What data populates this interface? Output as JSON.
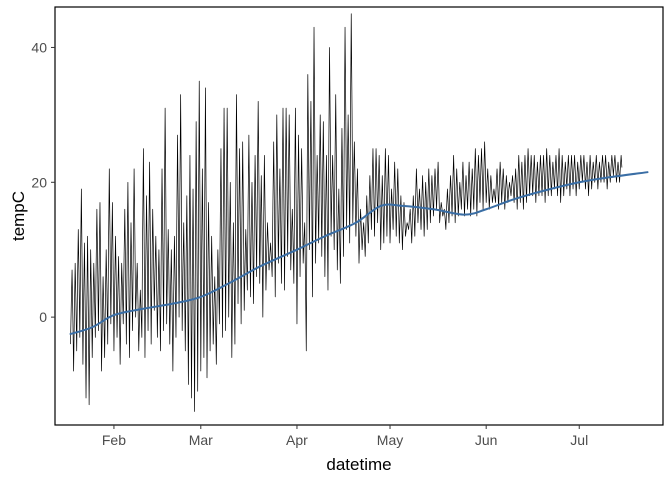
{
  "chart_data": {
    "type": "line",
    "title": "",
    "xlabel": "datetime",
    "ylabel": "tempC",
    "x_axis": {
      "type": "date",
      "range": [
        "2021-01-13",
        "2021-07-28"
      ],
      "ticks": [
        {
          "label": "Feb",
          "date": "2021-02-01"
        },
        {
          "label": "Mar",
          "date": "2021-03-01"
        },
        {
          "label": "Apr",
          "date": "2021-04-01"
        },
        {
          "label": "May",
          "date": "2021-05-01"
        },
        {
          "label": "Jun",
          "date": "2021-06-01"
        },
        {
          "label": "Jul",
          "date": "2021-07-01"
        }
      ]
    },
    "y_axis": {
      "range": [
        -16,
        46
      ],
      "ticks": [
        0,
        20,
        40
      ]
    },
    "grid": false,
    "legend": "none",
    "series": [
      {
        "role": "raw",
        "color": "#000000",
        "x_start": "2021-01-18",
        "x_end": "2021-07-23",
        "step": "6 hours",
        "daily_max": [
          7,
          8,
          13,
          19,
          11,
          12,
          10,
          8,
          16,
          17,
          6,
          10,
          22,
          17,
          12,
          9,
          8,
          16,
          20,
          14,
          22,
          8,
          4,
          25,
          18,
          23,
          16,
          12,
          10,
          22,
          31,
          13,
          10,
          12,
          27,
          33,
          14,
          18,
          24,
          19,
          29,
          35,
          22,
          34,
          17,
          12,
          6,
          10,
          25,
          31,
          31,
          20,
          14,
          33,
          25,
          26,
          13,
          27,
          20,
          24,
          32,
          21,
          24,
          14,
          11,
          26,
          30,
          22,
          31,
          31,
          30,
          16,
          31,
          27,
          25,
          14,
          36,
          32,
          43,
          24,
          30,
          29,
          24,
          40,
          24,
          33,
          19,
          28,
          43,
          30,
          45,
          26,
          22,
          16,
          14,
          18,
          21,
          25,
          25,
          24,
          21,
          25,
          24,
          19,
          23,
          22,
          18,
          17,
          14,
          16,
          18,
          22,
          19,
          21,
          20,
          22,
          21,
          22,
          23,
          17,
          16,
          19,
          21,
          24,
          22,
          20,
          23,
          21,
          23,
          22,
          25,
          24,
          25,
          26,
          22,
          21,
          19,
          22,
          23,
          22,
          21,
          20,
          21,
          22,
          24,
          23,
          24,
          25,
          24,
          24,
          23,
          24,
          24,
          25,
          24,
          23,
          24,
          25,
          24,
          23,
          24,
          24,
          24,
          23,
          24,
          24,
          23,
          24,
          23,
          24,
          23,
          24,
          24,
          23,
          24,
          24,
          23,
          24
        ],
        "daily_min": [
          -4,
          -8,
          -5,
          -3,
          -7,
          -12,
          -13,
          -6,
          -3,
          -2,
          -8,
          -6,
          -4,
          -1,
          -5,
          -3,
          -7,
          -1,
          -4,
          -6,
          -2,
          0,
          -5,
          -3,
          -6,
          -2,
          -4,
          1,
          -3,
          -5,
          -2,
          -1,
          -4,
          -8,
          -3,
          0,
          -2,
          -5,
          -10,
          -12,
          -14,
          -11,
          -8,
          -6,
          -9,
          -5,
          -4,
          -7,
          -1,
          -3,
          -2,
          0,
          -6,
          -4,
          2,
          -1,
          1,
          4,
          3,
          2,
          6,
          5,
          0,
          4,
          7,
          6,
          3,
          8,
          5,
          4,
          9,
          7,
          5,
          -1,
          6,
          8,
          -5,
          10,
          3,
          8,
          11,
          9,
          6,
          4,
          12,
          10,
          7,
          5,
          9,
          13,
          11,
          14,
          12,
          8,
          10,
          9,
          11,
          13,
          12,
          14,
          10,
          11,
          12,
          11,
          13,
          12,
          11,
          10,
          12,
          13,
          11,
          12,
          14,
          13,
          12,
          13,
          14,
          15,
          16,
          14,
          15,
          13,
          14,
          15,
          14,
          15,
          16,
          15,
          16,
          15,
          16,
          15,
          17,
          16,
          17,
          16,
          17,
          17,
          16,
          17,
          16,
          17,
          18,
          17,
          16,
          17,
          16,
          17,
          18,
          18,
          17,
          18,
          18,
          17,
          18,
          18,
          19,
          18,
          17,
          18,
          19,
          18,
          19,
          18,
          19,
          20,
          19,
          18,
          19,
          20,
          19,
          20,
          20,
          19,
          20,
          21,
          20,
          20
        ]
      },
      {
        "role": "smoothed",
        "color": "#3a6ea5",
        "points": [
          {
            "x": "2021-01-18",
            "y": -2.5
          },
          {
            "x": "2021-01-25",
            "y": -1.5
          },
          {
            "x": "2021-02-01",
            "y": 0.3
          },
          {
            "x": "2021-02-10",
            "y": 1.2
          },
          {
            "x": "2021-02-20",
            "y": 2.0
          },
          {
            "x": "2021-03-01",
            "y": 3.0
          },
          {
            "x": "2021-03-10",
            "y": 5.0
          },
          {
            "x": "2021-03-20",
            "y": 7.5
          },
          {
            "x": "2021-04-01",
            "y": 10.0
          },
          {
            "x": "2021-04-10",
            "y": 12.0
          },
          {
            "x": "2021-04-20",
            "y": 14.0
          },
          {
            "x": "2021-04-28",
            "y": 16.5
          },
          {
            "x": "2021-05-05",
            "y": 16.5
          },
          {
            "x": "2021-05-15",
            "y": 16.0
          },
          {
            "x": "2021-05-25",
            "y": 15.2
          },
          {
            "x": "2021-06-01",
            "y": 16.0
          },
          {
            "x": "2021-06-10",
            "y": 17.5
          },
          {
            "x": "2021-06-20",
            "y": 18.8
          },
          {
            "x": "2021-07-01",
            "y": 20.0
          },
          {
            "x": "2021-07-10",
            "y": 20.7
          },
          {
            "x": "2021-07-23",
            "y": 21.5
          }
        ]
      }
    ]
  }
}
